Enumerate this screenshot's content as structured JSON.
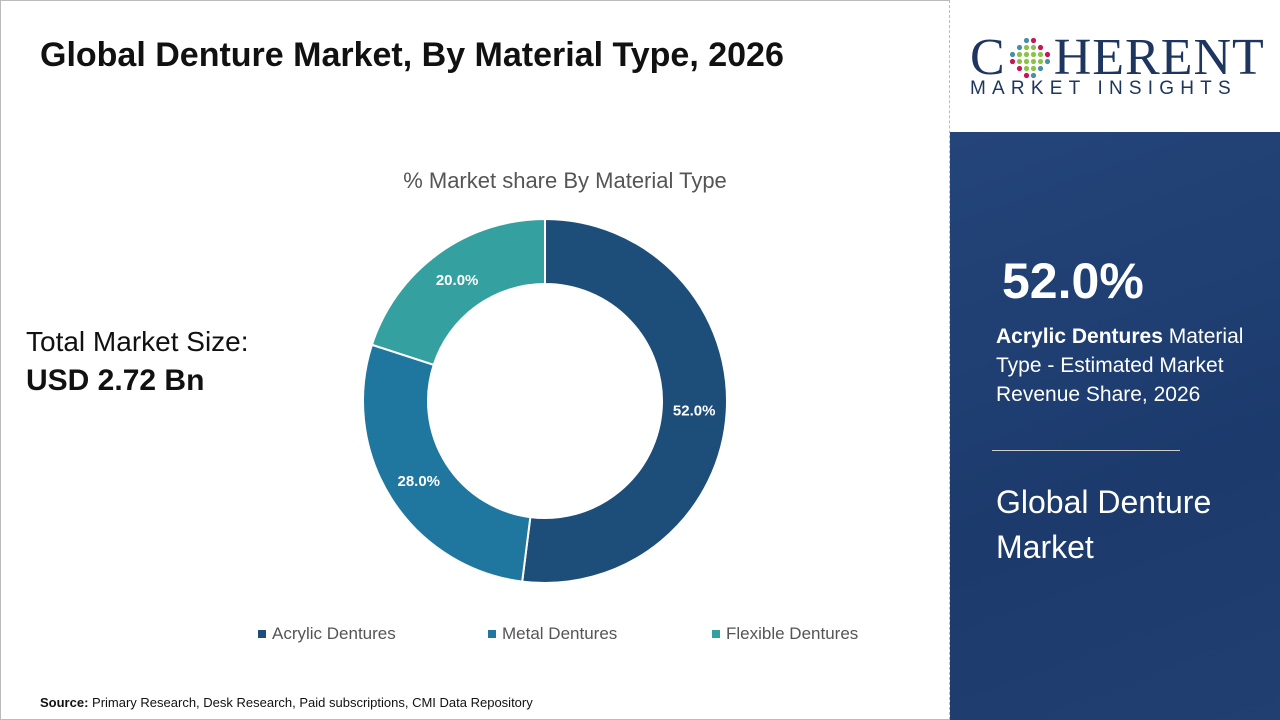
{
  "title": "Global Denture Market, By Material Type, 2026",
  "total_label": "Total Market Size:",
  "total_value": "USD 2.72 Bn",
  "source_label": "Source:",
  "source_text": "Primary Research, Desk Research, Paid subscriptions, CMI Data Repository",
  "logo": {
    "main_c": "C",
    "main_rest": "HERENT",
    "sub": "MARKET INSIGHTS"
  },
  "panel": {
    "share": "52.0%",
    "desc_bold": "Acrylic Dentures",
    "desc_rest": " Material Type - Estimated Market Revenue Share, 2026",
    "market": "Global Denture Market"
  },
  "chart_data": {
    "type": "pie",
    "donut": true,
    "title": "% Market share By Material Type",
    "categories": [
      "Acrylic Dentures",
      "Metal Dentures",
      "Flexible Dentures"
    ],
    "values": [
      52.0,
      28.0,
      20.0
    ],
    "labels": [
      "52.0%",
      "28.0%",
      "20.0%"
    ],
    "colors": [
      "#1d4e79",
      "#1f77a0",
      "#35a0a0"
    ],
    "legend": "bottom"
  }
}
